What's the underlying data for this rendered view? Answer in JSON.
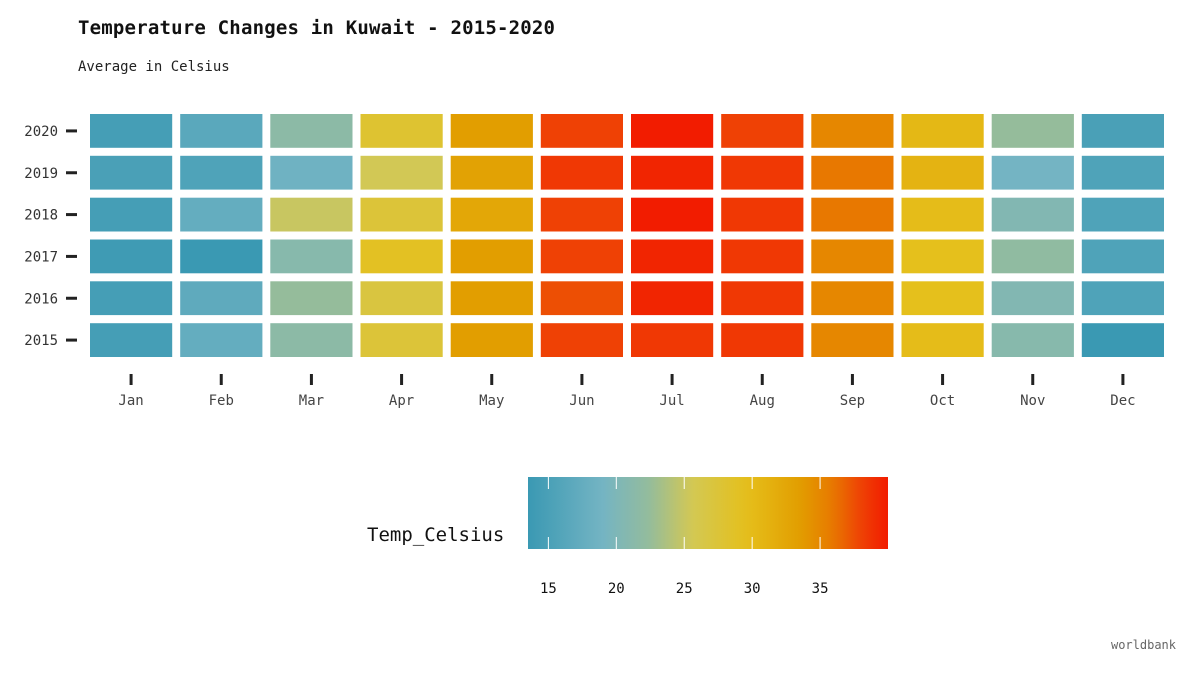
{
  "chart_data": {
    "type": "heatmap",
    "title": "Temperature Changes in Kuwait - 2015-2020",
    "subtitle": "Average in Celsius",
    "x_categories": [
      "Jan",
      "Feb",
      "Mar",
      "Apr",
      "May",
      "Jun",
      "Jul",
      "Aug",
      "Sep",
      "Oct",
      "Nov",
      "Dec"
    ],
    "y_categories": [
      "2015",
      "2016",
      "2017",
      "2018",
      "2019",
      "2020"
    ],
    "values": [
      [
        14.5,
        17.5,
        21.5,
        27.5,
        33.5,
        38.0,
        38.5,
        38.5,
        35.0,
        30.0,
        21.0,
        13.5
      ],
      [
        14.5,
        17.0,
        22.5,
        27.0,
        33.5,
        37.5,
        39.5,
        38.5,
        35.0,
        29.5,
        20.5,
        15.5
      ],
      [
        14.0,
        13.5,
        21.0,
        29.0,
        33.5,
        38.0,
        39.5,
        38.5,
        35.0,
        29.5,
        22.0,
        15.5
      ],
      [
        14.5,
        17.5,
        25.0,
        27.5,
        32.5,
        38.0,
        40.0,
        38.5,
        36.0,
        30.0,
        20.5,
        15.5
      ],
      [
        15.0,
        15.5,
        18.5,
        25.5,
        33.0,
        38.5,
        39.5,
        38.5,
        36.0,
        31.0,
        19.0,
        15.5
      ],
      [
        14.5,
        16.5,
        21.5,
        28.0,
        33.5,
        38.0,
        40.0,
        38.0,
        35.0,
        30.5,
        22.5,
        15.0
      ]
    ],
    "colorbar": {
      "title": "Temp_Celsius",
      "ticks": [
        15,
        20,
        25,
        30,
        35
      ],
      "range": [
        13.5,
        40.0
      ]
    },
    "caption": "worldbank"
  }
}
